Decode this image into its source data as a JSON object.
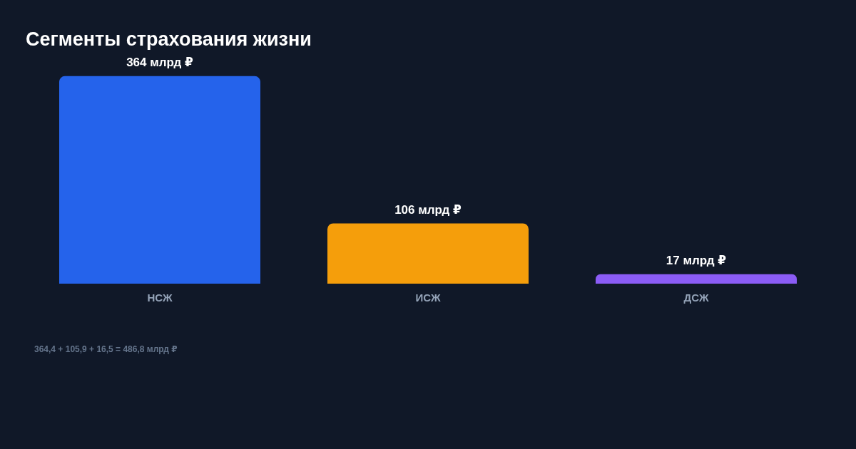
{
  "chart_data": {
    "type": "bar",
    "title": "Сегменты страхования жизни",
    "categories": [
      "НСЖ",
      "ИСЖ",
      "ДСЖ"
    ],
    "values": [
      364.4,
      105.9,
      16.5
    ],
    "value_labels": [
      "364 млрд ₽",
      "106 млрд ₽",
      "17 млрд ₽"
    ],
    "colors": [
      "#2563eb",
      "#f59e0b",
      "#8b5cf6"
    ],
    "annotations": [
      "364,4 + 105,9 + 16,5 = 486,8 млрд ₽"
    ],
    "legend": false
  }
}
